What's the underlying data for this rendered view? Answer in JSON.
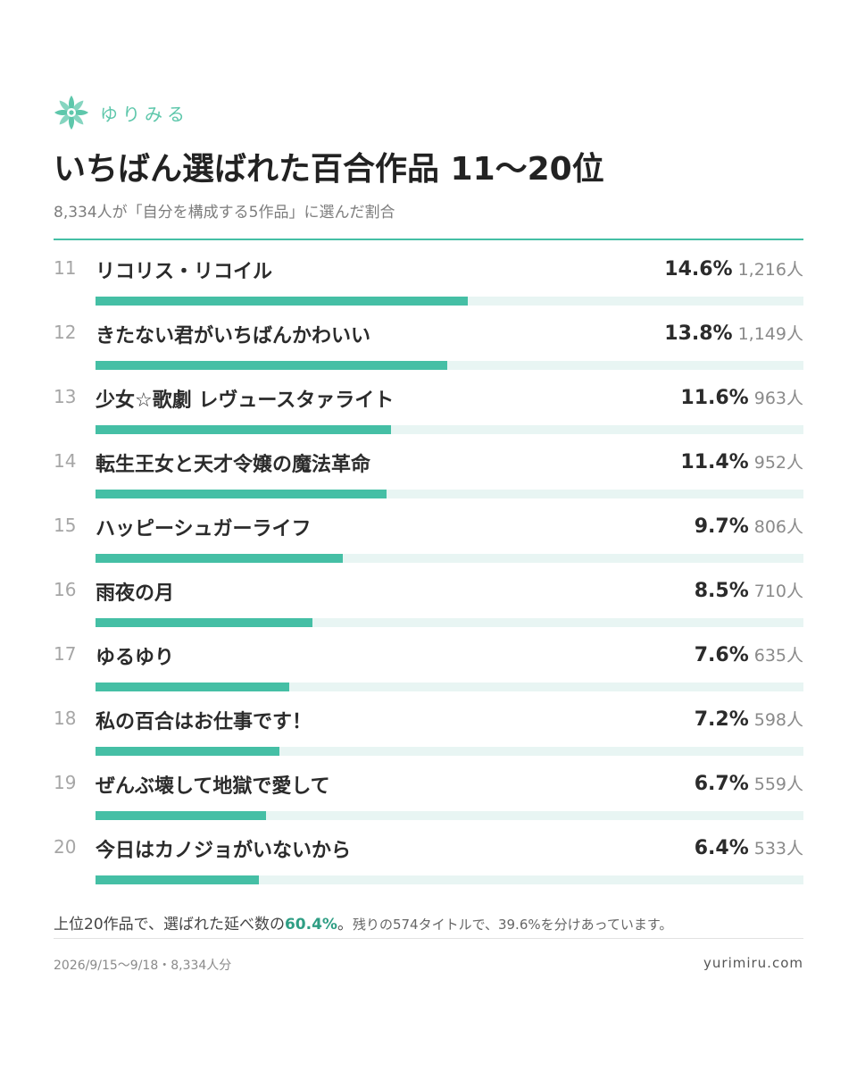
{
  "brand": {
    "name": "ゆりみる",
    "logo_icon": "lily-flower-icon",
    "color": "#5ec7ab"
  },
  "title": "いちばん選ばれた百合作品 11〜20位",
  "subtitle": "8,334人が「自分を構成する5作品」に選んだ割合",
  "accent_color": "#45bfa5",
  "chart_data": {
    "type": "bar",
    "orientation": "horizontal",
    "value_unit": "%",
    "xlim": [
      0,
      27.75
    ],
    "categories": [
      "リコリス・リコイル",
      "きたない君がいちばんかわいい",
      "少女☆歌劇 レヴュースタァライト",
      "転生王女と天才令嬢の魔法革命",
      "ハッピーシュガーライフ",
      "雨夜の月",
      "ゆるゆり",
      "私の百合はお仕事です！",
      "ぜんぶ壊して地獄で愛して",
      "今日はカノジョがいないから"
    ],
    "rows": [
      {
        "rank": "11",
        "name": "リコリス・リコイル",
        "value": 14.6,
        "pct_label": "14.6%",
        "count_label": "1,216人"
      },
      {
        "rank": "12",
        "name": "きたない君がいちばんかわいい",
        "value": 13.8,
        "pct_label": "13.8%",
        "count_label": "1,149人"
      },
      {
        "rank": "13",
        "name": "少女☆歌劇 レヴュースタァライト",
        "value": 11.6,
        "pct_label": "11.6%",
        "count_label": "963人"
      },
      {
        "rank": "14",
        "name": "転生王女と天才令嬢の魔法革命",
        "value": 11.4,
        "pct_label": "11.4%",
        "count_label": "952人"
      },
      {
        "rank": "15",
        "name": "ハッピーシュガーライフ",
        "value": 9.7,
        "pct_label": "9.7%",
        "count_label": "806人"
      },
      {
        "rank": "16",
        "name": "雨夜の月",
        "value": 8.5,
        "pct_label": "8.5%",
        "count_label": "710人"
      },
      {
        "rank": "17",
        "name": "ゆるゆり",
        "value": 7.6,
        "pct_label": "7.6%",
        "count_label": "635人"
      },
      {
        "rank": "18",
        "name": "私の百合はお仕事です！",
        "value": 7.2,
        "pct_label": "7.2%",
        "count_label": "598人"
      },
      {
        "rank": "19",
        "name": "ぜんぶ壊して地獄で愛して",
        "value": 6.7,
        "pct_label": "6.7%",
        "count_label": "559人"
      },
      {
        "rank": "20",
        "name": "今日はカノジョがいないから",
        "value": 6.4,
        "pct_label": "6.4%",
        "count_label": "533人"
      }
    ],
    "bar_color": "#45bfa5",
    "track_color": "#e8f5f3",
    "grid": false,
    "legend": "none"
  },
  "summary": {
    "lead": "上位20作品で、選ばれた延べ数の",
    "highlight": "60.4%",
    "period": "。",
    "rest": "残りの574タイトルで、39.6%を分けあっています。",
    "highlight_color": "#2f9e84"
  },
  "footer": {
    "date_range": "2026/9/15〜9/18・8,334人分",
    "site": "yurimiru.com"
  }
}
